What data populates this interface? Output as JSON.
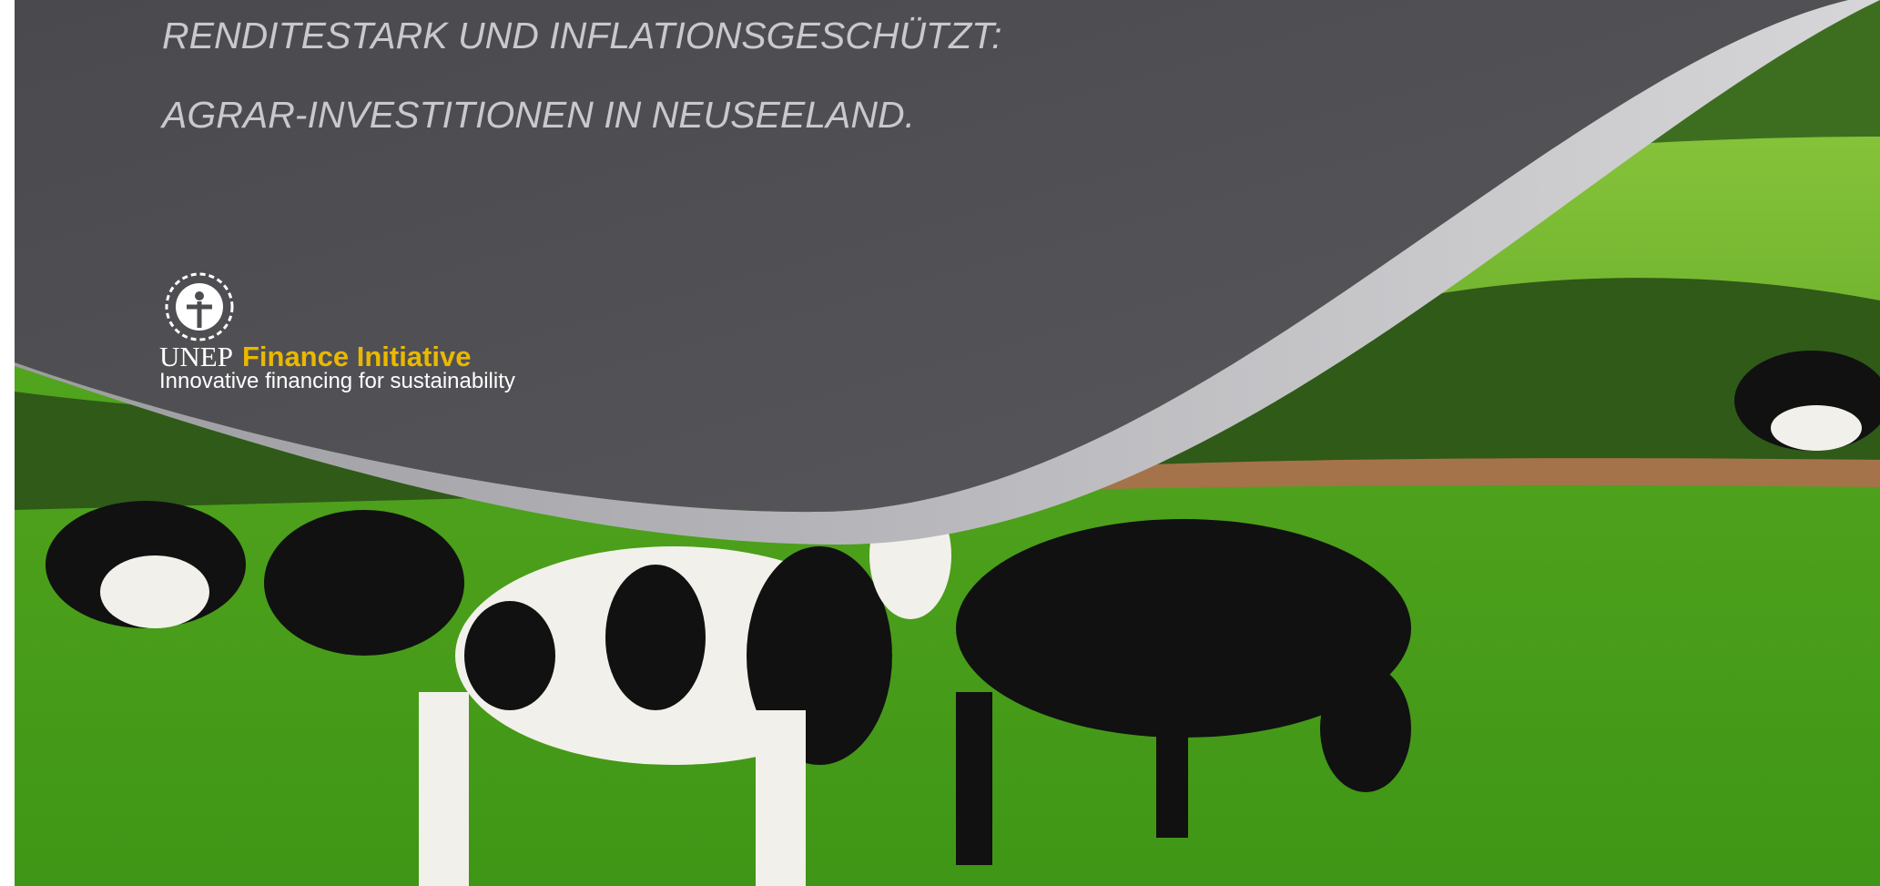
{
  "title": {
    "lines": [
      "RENDITESTARK UND INFLATIONSGESCHÜTZT:",
      "AGRAR-INVESTITIONEN IN NEUSEELAND."
    ]
  },
  "logo": {
    "acronym": "UNEP",
    "name": "Finance Initiative",
    "tagline": "Innovative financing for sustainability"
  }
}
